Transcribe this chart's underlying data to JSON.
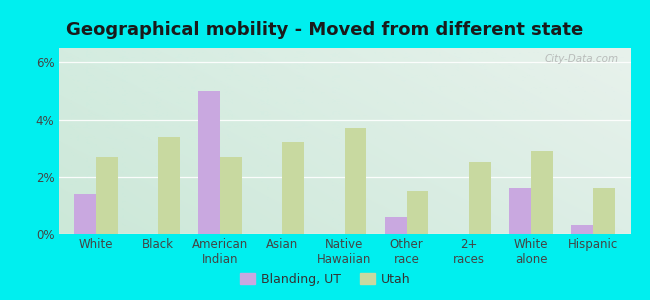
{
  "title": "Geographical mobility - Moved from different state",
  "categories": [
    "White",
    "Black",
    "American\nIndian",
    "Asian",
    "Native\nHawaiian",
    "Other\nrace",
    "2+\nraces",
    "White\nalone",
    "Hispanic"
  ],
  "blanding_values": [
    1.4,
    0.0,
    5.0,
    0.0,
    0.0,
    0.6,
    0.0,
    1.6,
    0.3
  ],
  "utah_values": [
    2.7,
    3.4,
    2.7,
    3.2,
    3.7,
    1.5,
    2.5,
    2.9,
    1.6
  ],
  "blanding_color": "#c9a8e0",
  "utah_color": "#c8d9a0",
  "background_color": "#00efef",
  "ylabel_ticks": [
    "0%",
    "2%",
    "4%",
    "6%"
  ],
  "ytick_values": [
    0,
    2,
    4,
    6
  ],
  "ylim": [
    0,
    6.5
  ],
  "bar_width": 0.35,
  "legend_labels": [
    "Blanding, UT",
    "Utah"
  ],
  "watermark": "City-Data.com",
  "title_fontsize": 13,
  "tick_fontsize": 8.5,
  "grid_color": "#e0e0e0",
  "bg_top_left": "#d0e8d8",
  "bg_top_right": "#e8f0e8",
  "bg_bottom_left": "#c8e8d0",
  "bg_bottom_right": "#ddeedd"
}
